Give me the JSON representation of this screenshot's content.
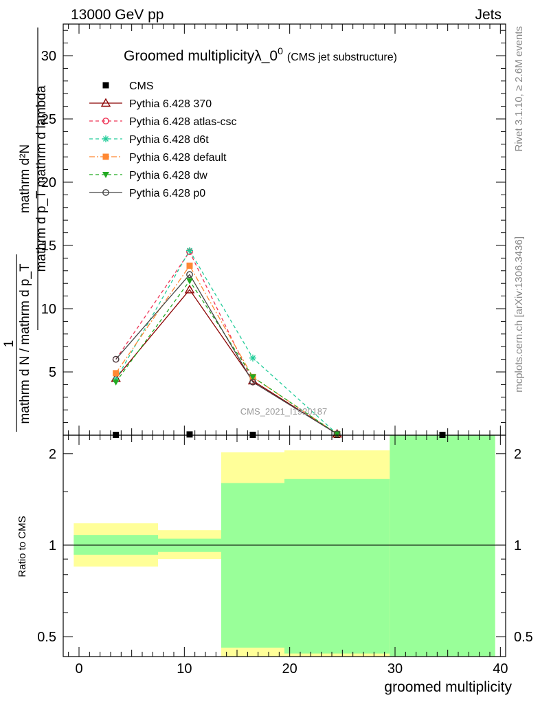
{
  "header": {
    "left": "13000 GeV pp",
    "right": "Jets"
  },
  "title": {
    "main": "Groomed multiplicityλ_0",
    "sup": "0",
    "sub": "(CMS jet substructure)"
  },
  "ylabel_main": {
    "numerator": "mathrm d²N",
    "denominator": "mathrm d p_T mathrm d lambda",
    "prefactor_num": "1",
    "prefactor_den": "mathrm d N / mathrm d p_T"
  },
  "ylabel_ratio": "Ratio to CMS",
  "xlabel": "groomed multiplicity",
  "side_texts": {
    "rivet": "Rivet 3.1.10, ≥ 2.6M events",
    "mcplots": "mcplots.cern.ch [arXiv:1306.3436]"
  },
  "watermark": "CMS_2021_I1920187",
  "colors": {
    "CMS": "#000000",
    "370": "#8b0000",
    "atlas-csc": "#ee3355",
    "d6t": "#22cc99",
    "default": "#ff8833",
    "dw": "#22aa22",
    "p0": "#444444",
    "band_inner": "#99ff99",
    "band_outer": "#ffff99"
  },
  "chart_data": [
    {
      "type": "line",
      "panel": "main",
      "xlim": [
        -1.5,
        40.5
      ],
      "ylim": [
        0,
        32.5
      ],
      "yticks": [
        5,
        10,
        15,
        20,
        25,
        30
      ],
      "ytick_labels": [
        "5",
        "10",
        "15",
        "20",
        "25",
        "30"
      ],
      "series": [
        {
          "name": "CMS",
          "style": "marker-only",
          "marker": "square-filled",
          "x": [
            3.5,
            10.5,
            16.5,
            24.5,
            34.5
          ],
          "y": [
            0.02,
            0.06,
            0.03,
            0.01,
            0.01
          ]
        },
        {
          "name": "Pythia 6.428 370",
          "style": "solid",
          "marker": "triangle-open",
          "x": [
            3.5,
            10.5,
            16.5,
            24.5
          ],
          "y": [
            4.5,
            11.5,
            4.3,
            0.1
          ]
        },
        {
          "name": "Pythia 6.428 atlas-csc",
          "style": "dashed",
          "marker": "circle-open",
          "x": [
            3.5,
            10.5,
            16.5,
            24.5
          ],
          "y": [
            6.0,
            14.5,
            4.2,
            0.1
          ]
        },
        {
          "name": "Pythia 6.428 d6t",
          "style": "dashed",
          "marker": "star",
          "x": [
            3.5,
            10.5,
            16.5,
            24.5
          ],
          "y": [
            4.4,
            14.6,
            6.1,
            0.1
          ]
        },
        {
          "name": "Pythia 6.428 default",
          "style": "dashdot",
          "marker": "square-filled",
          "x": [
            3.5,
            10.5,
            16.5,
            24.5
          ],
          "y": [
            4.9,
            13.4,
            4.6,
            0.1
          ]
        },
        {
          "name": "Pythia 6.428 dw",
          "style": "dashed",
          "marker": "triangle-down-filled",
          "x": [
            3.5,
            10.5,
            16.5,
            24.5
          ],
          "y": [
            4.2,
            12.2,
            4.6,
            0.1
          ]
        },
        {
          "name": "Pythia 6.428 p0",
          "style": "solid",
          "marker": "circle-open",
          "x": [
            3.5,
            10.5,
            16.5,
            24.5
          ],
          "y": [
            6.0,
            12.7,
            4.2,
            0.1
          ]
        }
      ]
    },
    {
      "type": "area",
      "panel": "ratio",
      "scale": "log",
      "xlim": [
        -1.5,
        40.5
      ],
      "ylim": [
        0.43,
        2.3
      ],
      "xticks": [
        0,
        10,
        20,
        30,
        40
      ],
      "xtick_labels": [
        "0",
        "10",
        "20",
        "30",
        "40"
      ],
      "yticks": [
        0.5,
        1,
        2
      ],
      "ytick_labels": [
        "0.5",
        "1",
        "2"
      ],
      "reference": 1,
      "bins": [
        {
          "x0": -0.5,
          "x1": 7.5,
          "inner": [
            0.93,
            1.08
          ],
          "outer": [
            0.85,
            1.18
          ]
        },
        {
          "x0": 7.5,
          "x1": 13.5,
          "inner": [
            0.95,
            1.05
          ],
          "outer": [
            0.9,
            1.12
          ]
        },
        {
          "x0": 13.5,
          "x1": 19.5,
          "inner": [
            0.46,
            1.6
          ],
          "outer": [
            0.43,
            2.02
          ]
        },
        {
          "x0": 19.5,
          "x1": 29.5,
          "inner": [
            0.44,
            1.65
          ],
          "outer": [
            0.43,
            2.05
          ]
        },
        {
          "x0": 29.5,
          "x1": 39.5,
          "inner": [
            0.43,
            2.3
          ],
          "outer": [
            0.43,
            2.3
          ]
        }
      ]
    }
  ]
}
